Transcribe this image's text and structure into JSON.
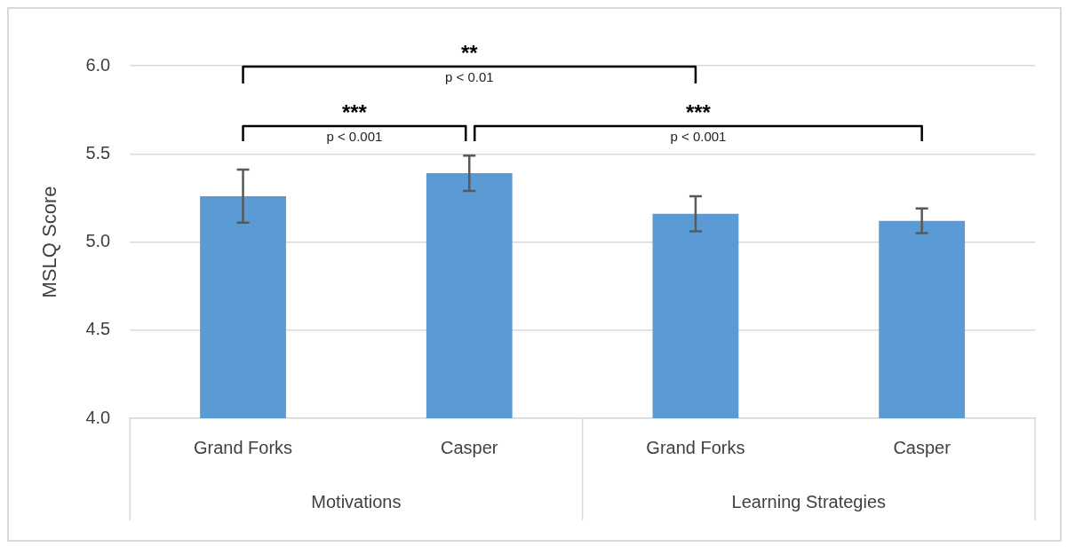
{
  "chart_data": {
    "type": "bar",
    "ylabel": "MSLQ Score",
    "categories": [
      "Grand Forks",
      "Casper",
      "Grand Forks",
      "Casper"
    ],
    "values": [
      5.26,
      5.39,
      5.16,
      5.12
    ],
    "errors": [
      0.15,
      0.1,
      0.1,
      0.07
    ],
    "color": "#5b9bd5",
    "ylim": [
      4.0,
      6.0
    ],
    "yticks": [
      {
        "value": 4,
        "label": "4.0"
      },
      {
        "value": 4.5,
        "label": "4.5"
      },
      {
        "value": 5,
        "label": "5.0"
      },
      {
        "value": 5.5,
        "label": "5.5"
      },
      {
        "value": 6,
        "label": "6.0"
      }
    ],
    "grid": "y",
    "legend": false,
    "annotations": [
      "**",
      "p < 0.01",
      "***",
      "p < 0.001",
      "***",
      "p < 0.001",
      "Motivations",
      "Learning Strategies"
    ]
  }
}
